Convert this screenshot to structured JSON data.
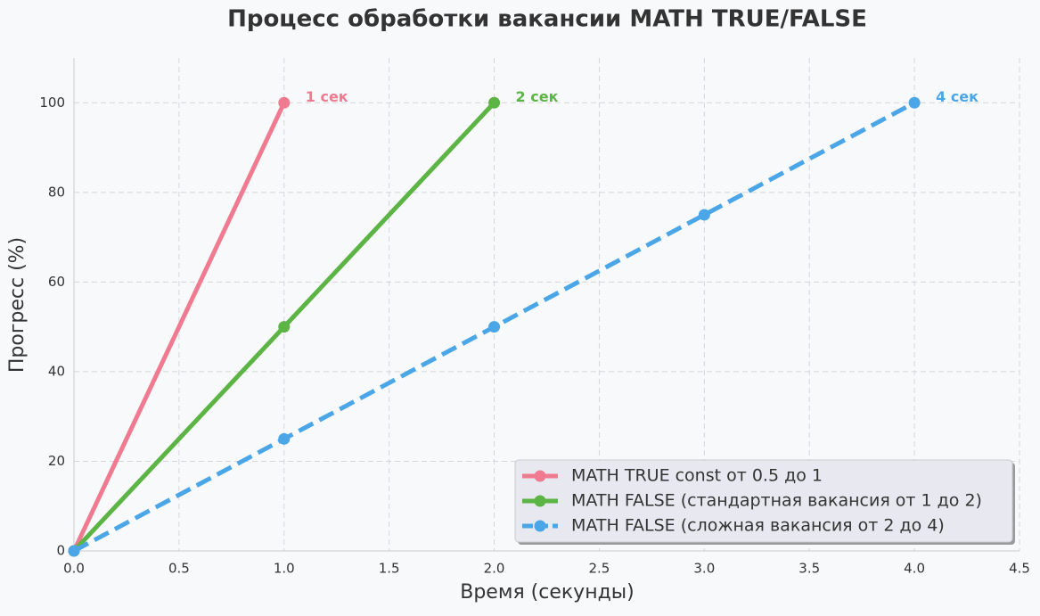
{
  "chart_data": {
    "type": "line",
    "title": "Процесс обработки вакансии MATH TRUE/FALSE",
    "xlabel": "Время (секунды)",
    "ylabel": "Прогресс (%)",
    "xlim": [
      0,
      4.5
    ],
    "ylim": [
      0,
      110
    ],
    "xticks": [
      {
        "value": 0,
        "label": "0.0"
      },
      0.5,
      {
        "value": 1,
        "label": "1.0"
      },
      1.5,
      {
        "value": 2,
        "label": "2.0"
      },
      2.5,
      {
        "value": 3,
        "label": "3.0"
      },
      3.5,
      {
        "value": 4,
        "label": "4.0"
      },
      4.5
    ],
    "yticks": [
      0,
      20,
      40,
      60,
      80,
      100
    ],
    "grid": true,
    "legend": "lower right",
    "series": [
      {
        "name": "MATH TRUE const от 0.5 до 1",
        "color": "#f07b91",
        "linestyle": "solid",
        "x": [
          0,
          1
        ],
        "values": [
          0,
          100
        ]
      },
      {
        "name": "MATH FALSE (стандартная вакансия от 1 до 2)",
        "color": "#5cb445",
        "linestyle": "solid",
        "x": [
          0,
          1,
          2
        ],
        "values": [
          0,
          50,
          100
        ]
      },
      {
        "name": "MATH FALSE (сложная вакансия от 2 до 4)",
        "color": "#4ba6e8",
        "linestyle": "dashed",
        "x": [
          0,
          1,
          2,
          3,
          4
        ],
        "values": [
          0,
          25,
          50,
          75,
          100
        ]
      }
    ],
    "annotations": [
      "1 сек",
      "2 сек",
      "4 сек"
    ]
  }
}
